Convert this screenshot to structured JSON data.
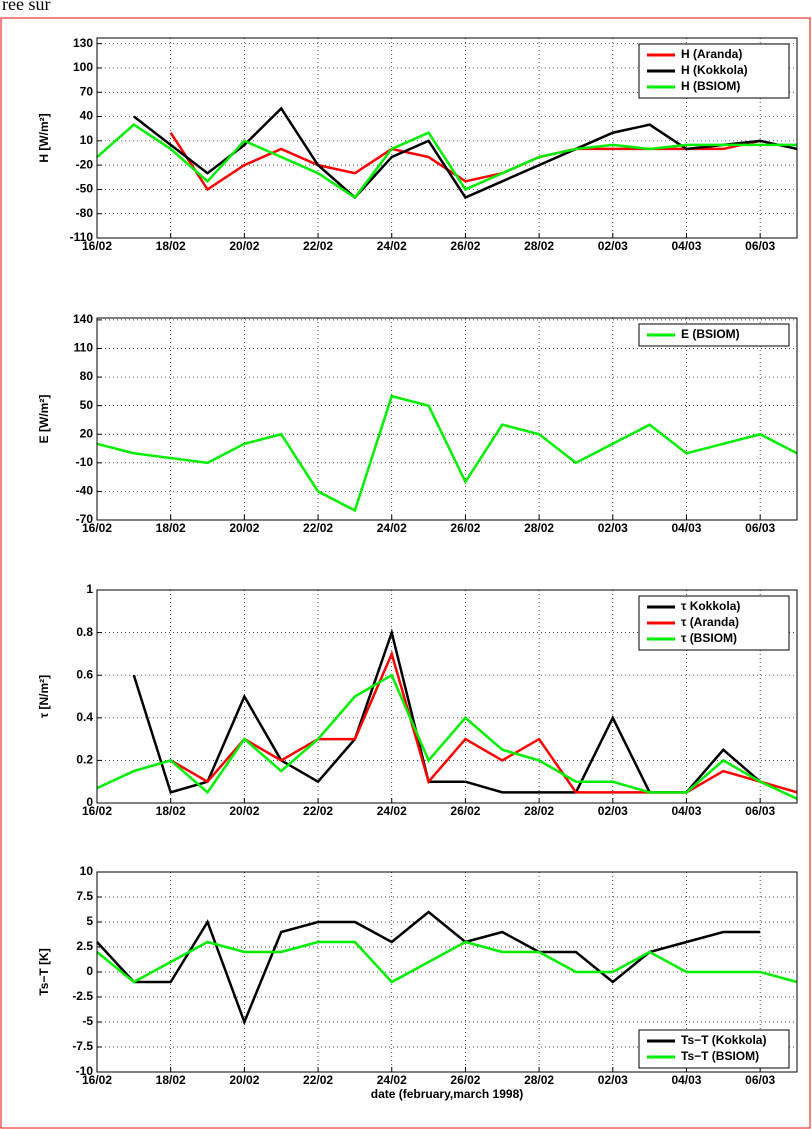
{
  "fragment": "ree sur",
  "chart_data": [
    {
      "type": "line",
      "ylabel": "H [W/m²]",
      "legend": "top-right",
      "grid": true,
      "x": [
        "1998-02-16",
        "1998-02-17",
        "1998-02-18",
        "1998-02-19",
        "1998-02-20",
        "1998-02-21",
        "1998-02-22",
        "1998-02-23",
        "1998-02-24",
        "1998-02-25",
        "1998-02-26",
        "1998-02-27",
        "1998-02-28",
        "1998-03-01",
        "1998-03-02",
        "1998-03-03",
        "1998-03-04",
        "1998-03-05",
        "1998-03-06",
        "1998-03-07"
      ],
      "xlim": [
        "1998-02-16",
        "1998-03-07"
      ],
      "xticks": [
        {
          "value": "1998-02-16",
          "label": "16/02"
        },
        {
          "value": "1998-02-18",
          "label": "18/02"
        },
        {
          "value": "1998-02-20",
          "label": "20/02"
        },
        {
          "value": "1998-02-22",
          "label": "22/02"
        },
        {
          "value": "1998-02-24",
          "label": "24/02"
        },
        {
          "value": "1998-02-26",
          "label": "26/02"
        },
        {
          "value": "1998-02-28",
          "label": "28/02"
        },
        {
          "value": "1998-03-02",
          "label": "02/03"
        },
        {
          "value": "1998-03-04",
          "label": "04/03"
        },
        {
          "value": "1998-03-06",
          "label": "06/03"
        }
      ],
      "ylim": [
        -110,
        137
      ],
      "yticks": [
        -110,
        -80,
        -50,
        -20,
        10,
        40,
        70,
        100,
        130
      ],
      "series": [
        {
          "name": "H (Aranda)",
          "color": "#ff0000",
          "values": [
            null,
            null,
            20,
            -50,
            -20,
            0,
            -20,
            -30,
            0,
            -10,
            -40,
            -30,
            -10,
            0,
            0,
            0,
            0,
            0,
            10,
            null
          ]
        },
        {
          "name": "H (Kokkola)",
          "color": "#000000",
          "values": [
            null,
            40,
            5,
            -30,
            5,
            50,
            -20,
            -60,
            -10,
            10,
            -60,
            -40,
            -20,
            0,
            20,
            30,
            0,
            5,
            10,
            0
          ]
        },
        {
          "name": "H (BSIOM)",
          "color": "#00ee00",
          "values": [
            -10,
            30,
            0,
            -40,
            10,
            -10,
            -30,
            -60,
            0,
            20,
            -50,
            -30,
            -10,
            0,
            5,
            0,
            5,
            5,
            5,
            5
          ]
        }
      ]
    },
    {
      "type": "line",
      "ylabel": "E [W/m²]",
      "legend": "top-right",
      "grid": true,
      "x": [
        "1998-02-16",
        "1998-02-17",
        "1998-02-18",
        "1998-02-19",
        "1998-02-20",
        "1998-02-21",
        "1998-02-22",
        "1998-02-23",
        "1998-02-24",
        "1998-02-25",
        "1998-02-26",
        "1998-02-27",
        "1998-02-28",
        "1998-03-01",
        "1998-03-02",
        "1998-03-03",
        "1998-03-04",
        "1998-03-05",
        "1998-03-06",
        "1998-03-07"
      ],
      "xlim": [
        "1998-02-16",
        "1998-03-07"
      ],
      "xticks": [
        {
          "value": "1998-02-16",
          "label": "16/02"
        },
        {
          "value": "1998-02-18",
          "label": "18/02"
        },
        {
          "value": "1998-02-20",
          "label": "20/02"
        },
        {
          "value": "1998-02-22",
          "label": "22/02"
        },
        {
          "value": "1998-02-24",
          "label": "24/02"
        },
        {
          "value": "1998-02-26",
          "label": "26/02"
        },
        {
          "value": "1998-02-28",
          "label": "28/02"
        },
        {
          "value": "1998-03-02",
          "label": "02/03"
        },
        {
          "value": "1998-03-04",
          "label": "04/03"
        },
        {
          "value": "1998-03-06",
          "label": "06/03"
        }
      ],
      "ylim": [
        -70,
        142
      ],
      "yticks": [
        -70,
        -40,
        -10,
        20,
        50,
        80,
        110,
        140
      ],
      "series": [
        {
          "name": "E (BSIOM)",
          "color": "#00ee00",
          "values": [
            10,
            0,
            -5,
            -10,
            10,
            20,
            -40,
            -60,
            60,
            50,
            -30,
            30,
            20,
            -10,
            10,
            30,
            0,
            10,
            20,
            0
          ]
        }
      ]
    },
    {
      "type": "line",
      "ylabel": "τ [N/m²]",
      "legend": "top-right",
      "grid": true,
      "x": [
        "1998-02-16",
        "1998-02-17",
        "1998-02-18",
        "1998-02-19",
        "1998-02-20",
        "1998-02-21",
        "1998-02-22",
        "1998-02-23",
        "1998-02-24",
        "1998-02-25",
        "1998-02-26",
        "1998-02-27",
        "1998-02-28",
        "1998-03-01",
        "1998-03-02",
        "1998-03-03",
        "1998-03-04",
        "1998-03-05",
        "1998-03-06",
        "1998-03-07"
      ],
      "xlim": [
        "1998-02-16",
        "1998-03-07"
      ],
      "xticks": [
        {
          "value": "1998-02-16",
          "label": "16/02"
        },
        {
          "value": "1998-02-18",
          "label": "18/02"
        },
        {
          "value": "1998-02-20",
          "label": "20/02"
        },
        {
          "value": "1998-02-22",
          "label": "22/02"
        },
        {
          "value": "1998-02-24",
          "label": "24/02"
        },
        {
          "value": "1998-02-26",
          "label": "26/02"
        },
        {
          "value": "1998-02-28",
          "label": "28/02"
        },
        {
          "value": "1998-03-02",
          "label": "02/03"
        },
        {
          "value": "1998-03-04",
          "label": "04/03"
        },
        {
          "value": "1998-03-06",
          "label": "06/03"
        }
      ],
      "ylim": [
        0,
        1
      ],
      "yticks": [
        0,
        0.2,
        0.4,
        0.6,
        0.8,
        1
      ],
      "series": [
        {
          "name": "τ Kokkola)",
          "color": "#000000",
          "values": [
            null,
            0.6,
            0.05,
            0.1,
            0.5,
            0.2,
            0.1,
            0.3,
            0.8,
            0.1,
            0.1,
            0.05,
            0.05,
            0.05,
            0.4,
            0.05,
            0.05,
            0.25,
            0.1,
            null
          ]
        },
        {
          "name": "τ (Aranda)",
          "color": "#ff0000",
          "values": [
            null,
            null,
            0.2,
            0.1,
            0.3,
            0.2,
            0.3,
            0.3,
            0.7,
            0.1,
            0.3,
            0.2,
            0.3,
            0.05,
            0.05,
            0.05,
            0.05,
            0.15,
            0.1,
            0.05
          ]
        },
        {
          "name": "τ (BSIOM)",
          "color": "#00ee00",
          "values": [
            0.07,
            0.15,
            0.2,
            0.05,
            0.3,
            0.15,
            0.3,
            0.5,
            0.6,
            0.2,
            0.4,
            0.25,
            0.2,
            0.1,
            0.1,
            0.05,
            0.05,
            0.2,
            0.1,
            0.02
          ]
        }
      ]
    },
    {
      "type": "line",
      "ylabel": "Ts−T [K]",
      "xlabel": "date (february,march 1998)",
      "legend": "bottom-right",
      "grid": true,
      "x": [
        "1998-02-16",
        "1998-02-17",
        "1998-02-18",
        "1998-02-19",
        "1998-02-20",
        "1998-02-21",
        "1998-02-22",
        "1998-02-23",
        "1998-02-24",
        "1998-02-25",
        "1998-02-26",
        "1998-02-27",
        "1998-02-28",
        "1998-03-01",
        "1998-03-02",
        "1998-03-03",
        "1998-03-04",
        "1998-03-05",
        "1998-03-06",
        "1998-03-07"
      ],
      "xlim": [
        "1998-02-16",
        "1998-03-07"
      ],
      "xticks": [
        {
          "value": "1998-02-16",
          "label": "16/02"
        },
        {
          "value": "1998-02-18",
          "label": "18/02"
        },
        {
          "value": "1998-02-20",
          "label": "20/02"
        },
        {
          "value": "1998-02-22",
          "label": "22/02"
        },
        {
          "value": "1998-02-24",
          "label": "24/02"
        },
        {
          "value": "1998-02-26",
          "label": "26/02"
        },
        {
          "value": "1998-02-28",
          "label": "28/02"
        },
        {
          "value": "1998-03-02",
          "label": "02/03"
        },
        {
          "value": "1998-03-04",
          "label": "04/03"
        },
        {
          "value": "1998-03-06",
          "label": "06/03"
        }
      ],
      "ylim": [
        -10,
        10
      ],
      "yticks": [
        -10,
        -7.5,
        -5,
        -2.5,
        0,
        2.5,
        5,
        7.5,
        10
      ],
      "series": [
        {
          "name": "Ts−T (Kokkola)",
          "color": "#000000",
          "values": [
            3,
            -1,
            -1,
            5,
            -5,
            4,
            5,
            5,
            3,
            6,
            3,
            4,
            2,
            2,
            -1,
            2,
            3,
            4,
            4,
            null
          ]
        },
        {
          "name": "Ts−T (BSIOM)",
          "color": "#00ee00",
          "values": [
            2,
            -1,
            1,
            3,
            2,
            2,
            3,
            3,
            -1,
            1,
            3,
            2,
            2,
            0,
            0,
            2,
            0,
            0,
            0,
            -1
          ]
        }
      ]
    }
  ]
}
